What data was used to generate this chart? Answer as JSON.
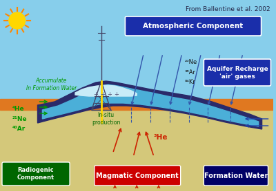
{
  "attribution": "From Ballentine et al. 2002",
  "sky_color": "#87CEEB",
  "ground_color": "#D4C87A",
  "surface_band_color": "#E07820",
  "reservoir_outer_color": "#2A2A6A",
  "reservoir_fill_color": "#4BAFD8",
  "reservoir_inner_color": "#C8ECF8",
  "atm_box_color": "#1A2EAA",
  "atm_box_text": "Atmospheric Component",
  "aquifer_box_color": "#1A2EAA",
  "aquifer_box_text": "Aquifer Recharge\n'air' gases",
  "radiogenic_box_color": "#006600",
  "radiogenic_box_text": "Radiogenic\nComponent",
  "magmatic_box_color": "#CC0000",
  "magmatic_box_text": "Magmatic Component",
  "formation_box_color": "#000066",
  "formation_box_text": "Formation Water",
  "accumulate_text": "Accumulate\nIn Formation Water",
  "insitu_text": "In-situ\nproduction",
  "he3_text": "³He",
  "radiogenic_gases": "⁴He\n²¹Ne\n⁴⁰Ar",
  "aquifer_gases": "²⁰Ne\n³⁶Ar\n⁸⁴Kr",
  "sun_color": "#FFD700",
  "arrow_atm_color": "#3355AA",
  "arrow_red_color": "#CC2200",
  "arrow_green_color": "#008800",
  "arrow_blue_color": "#2244AA",
  "tower_color": "#444466"
}
